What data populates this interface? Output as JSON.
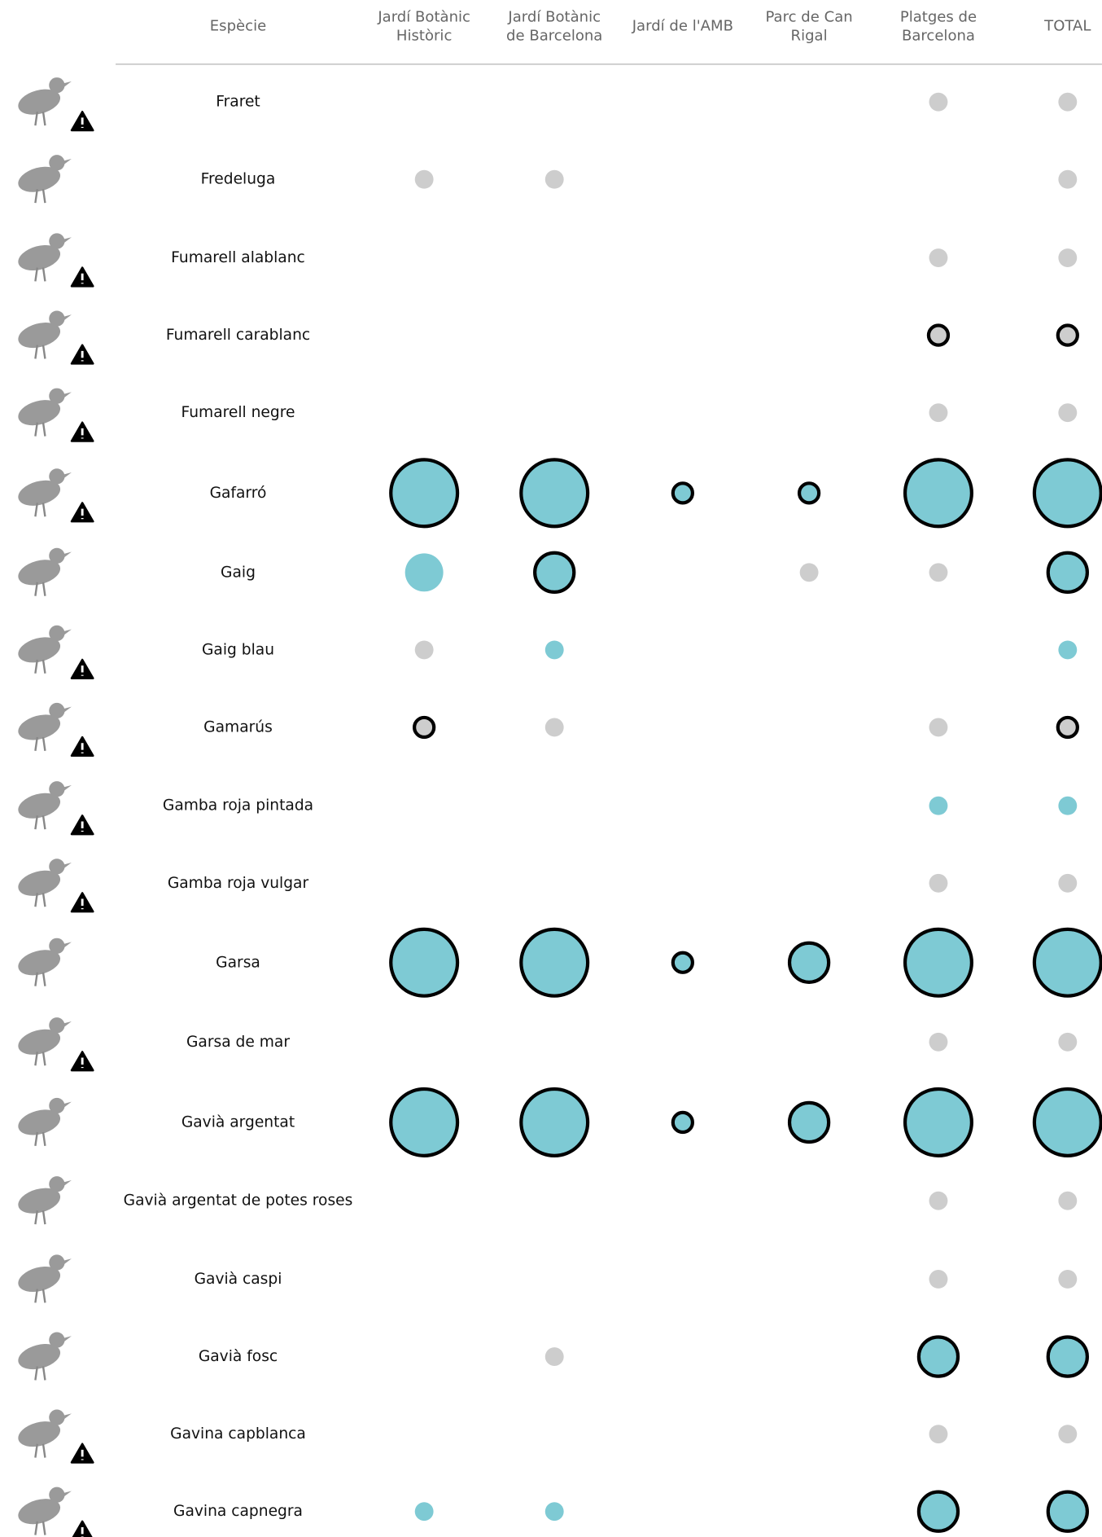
{
  "header": {
    "species": "Espècie",
    "columns": [
      [
        "Jardí Botànic",
        "Històric"
      ],
      [
        "Jardí Botànic",
        "de Barcelona"
      ],
      [
        "Jardí de l'AMB"
      ],
      [
        "Parc de Can",
        "Rigal"
      ],
      [
        "Platges de",
        "Barcelona"
      ],
      [
        "TOTAL"
      ]
    ]
  },
  "colors": {
    "gray": "#cdcdcd",
    "blue": "#7ecad4"
  },
  "rows": [
    {
      "species": "Fraret",
      "warning": true,
      "cells": [
        null,
        null,
        null,
        null,
        {
          "size": "small",
          "color": "gray",
          "outline": false
        },
        {
          "size": "small",
          "color": "gray",
          "outline": false
        }
      ]
    },
    {
      "species": "Fredeluga",
      "warning": false,
      "cells": [
        {
          "size": "small",
          "color": "gray",
          "outline": false
        },
        {
          "size": "small",
          "color": "gray",
          "outline": false
        },
        null,
        null,
        null,
        {
          "size": "small",
          "color": "gray",
          "outline": false
        }
      ]
    },
    {
      "species": "Fumarell alablanc",
      "warning": true,
      "cells": [
        null,
        null,
        null,
        null,
        {
          "size": "small",
          "color": "gray",
          "outline": false
        },
        {
          "size": "small",
          "color": "gray",
          "outline": false
        }
      ]
    },
    {
      "species": "Fumarell carablanc",
      "warning": true,
      "cells": [
        null,
        null,
        null,
        null,
        {
          "size": "small",
          "color": "gray",
          "outline": true
        },
        {
          "size": "small",
          "color": "gray",
          "outline": true
        }
      ]
    },
    {
      "species": "Fumarell negre",
      "warning": true,
      "cells": [
        null,
        null,
        null,
        null,
        {
          "size": "small",
          "color": "gray",
          "outline": false
        },
        {
          "size": "small",
          "color": "gray",
          "outline": false
        }
      ]
    },
    {
      "species": "Gafarró",
      "warning": true,
      "cells": [
        {
          "size": "large",
          "color": "blue",
          "outline": true
        },
        {
          "size": "large",
          "color": "blue",
          "outline": true
        },
        {
          "size": "small",
          "color": "blue",
          "outline": true
        },
        {
          "size": "small",
          "color": "blue",
          "outline": true
        },
        {
          "size": "large",
          "color": "blue",
          "outline": true
        },
        {
          "size": "large",
          "color": "blue",
          "outline": true
        }
      ]
    },
    {
      "species": "Gaig",
      "warning": false,
      "cells": [
        {
          "size": "medium",
          "color": "blue",
          "outline": false
        },
        {
          "size": "medium",
          "color": "blue",
          "outline": true
        },
        null,
        {
          "size": "small",
          "color": "gray",
          "outline": false
        },
        {
          "size": "small",
          "color": "gray",
          "outline": false
        },
        {
          "size": "medium",
          "color": "blue",
          "outline": true
        }
      ]
    },
    {
      "species": "Gaig blau",
      "warning": true,
      "cells": [
        {
          "size": "small",
          "color": "gray",
          "outline": false
        },
        {
          "size": "small",
          "color": "blue",
          "outline": false
        },
        null,
        null,
        null,
        {
          "size": "small",
          "color": "blue",
          "outline": false
        }
      ]
    },
    {
      "species": "Gamarús",
      "warning": true,
      "cells": [
        {
          "size": "small",
          "color": "gray",
          "outline": true
        },
        {
          "size": "small",
          "color": "gray",
          "outline": false
        },
        null,
        null,
        {
          "size": "small",
          "color": "gray",
          "outline": false
        },
        {
          "size": "small",
          "color": "gray",
          "outline": true
        }
      ]
    },
    {
      "species": "Gamba roja pintada",
      "warning": true,
      "cells": [
        null,
        null,
        null,
        null,
        {
          "size": "small",
          "color": "blue",
          "outline": false
        },
        {
          "size": "small",
          "color": "blue",
          "outline": false
        }
      ]
    },
    {
      "species": "Gamba roja vulgar",
      "warning": true,
      "cells": [
        null,
        null,
        null,
        null,
        {
          "size": "small",
          "color": "gray",
          "outline": false
        },
        {
          "size": "small",
          "color": "gray",
          "outline": false
        }
      ]
    },
    {
      "species": "Garsa",
      "warning": false,
      "cells": [
        {
          "size": "large",
          "color": "blue",
          "outline": true
        },
        {
          "size": "large",
          "color": "blue",
          "outline": true
        },
        {
          "size": "small",
          "color": "blue",
          "outline": true
        },
        {
          "size": "medium",
          "color": "blue",
          "outline": true
        },
        {
          "size": "large",
          "color": "blue",
          "outline": true
        },
        {
          "size": "large",
          "color": "blue",
          "outline": true
        }
      ]
    },
    {
      "species": "Garsa de mar",
      "warning": true,
      "cells": [
        null,
        null,
        null,
        null,
        {
          "size": "small",
          "color": "gray",
          "outline": false
        },
        {
          "size": "small",
          "color": "gray",
          "outline": false
        }
      ]
    },
    {
      "species": "Gavià argentat",
      "warning": false,
      "cells": [
        {
          "size": "large",
          "color": "blue",
          "outline": true
        },
        {
          "size": "large",
          "color": "blue",
          "outline": true
        },
        {
          "size": "small",
          "color": "blue",
          "outline": true
        },
        {
          "size": "medium",
          "color": "blue",
          "outline": true
        },
        {
          "size": "large",
          "color": "blue",
          "outline": true
        },
        {
          "size": "large",
          "color": "blue",
          "outline": true
        }
      ]
    },
    {
      "species": "Gavià argentat de potes roses",
      "warning": false,
      "cells": [
        null,
        null,
        null,
        null,
        {
          "size": "small",
          "color": "gray",
          "outline": false
        },
        {
          "size": "small",
          "color": "gray",
          "outline": false
        }
      ]
    },
    {
      "species": "Gavià caspi",
      "warning": false,
      "cells": [
        null,
        null,
        null,
        null,
        {
          "size": "small",
          "color": "gray",
          "outline": false
        },
        {
          "size": "small",
          "color": "gray",
          "outline": false
        }
      ]
    },
    {
      "species": "Gavià fosc",
      "warning": false,
      "cells": [
        null,
        {
          "size": "small",
          "color": "gray",
          "outline": false
        },
        null,
        null,
        {
          "size": "medium",
          "color": "blue",
          "outline": true
        },
        {
          "size": "medium",
          "color": "blue",
          "outline": true
        }
      ]
    },
    {
      "species": "Gavina capblanca",
      "warning": true,
      "cells": [
        null,
        null,
        null,
        null,
        {
          "size": "small",
          "color": "gray",
          "outline": false
        },
        {
          "size": "small",
          "color": "gray",
          "outline": false
        }
      ]
    },
    {
      "species": "Gavina capnegra",
      "warning": true,
      "cells": [
        {
          "size": "small",
          "color": "blue",
          "outline": false
        },
        {
          "size": "small",
          "color": "blue",
          "outline": false
        },
        null,
        null,
        {
          "size": "medium",
          "color": "blue",
          "outline": true
        },
        {
          "size": "medium",
          "color": "blue",
          "outline": true
        }
      ]
    }
  ]
}
